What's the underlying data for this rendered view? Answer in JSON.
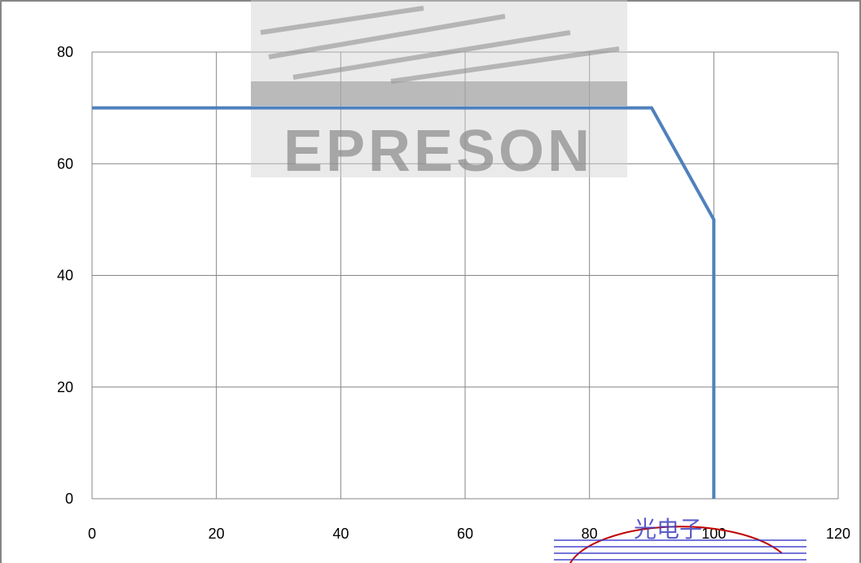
{
  "chart_data": {
    "type": "line",
    "title": "",
    "xlabel": "",
    "ylabel": "",
    "xlim": [
      0,
      120
    ],
    "ylim": [
      0,
      80
    ],
    "x_ticks": [
      0,
      20,
      40,
      60,
      80,
      100,
      120
    ],
    "y_ticks": [
      0,
      20,
      40,
      60,
      80
    ],
    "x_tick_labels": [
      "0",
      "20",
      "40",
      "60",
      "80",
      "100",
      "120"
    ],
    "y_tick_labels": [
      "0",
      "20",
      "40",
      "60",
      "80"
    ],
    "grid": true,
    "legend": "none",
    "series": [
      {
        "color": "#4f81bd",
        "points": [
          [
            0,
            70
          ],
          [
            90,
            70
          ],
          [
            100,
            50
          ],
          [
            100,
            0
          ]
        ]
      }
    ]
  },
  "watermarks": {
    "top_logo": "EPRESON",
    "bottom_seal": "光电子"
  },
  "colors": {
    "grid": "#868686",
    "frame": "#868686",
    "line": "#4f81bd"
  }
}
